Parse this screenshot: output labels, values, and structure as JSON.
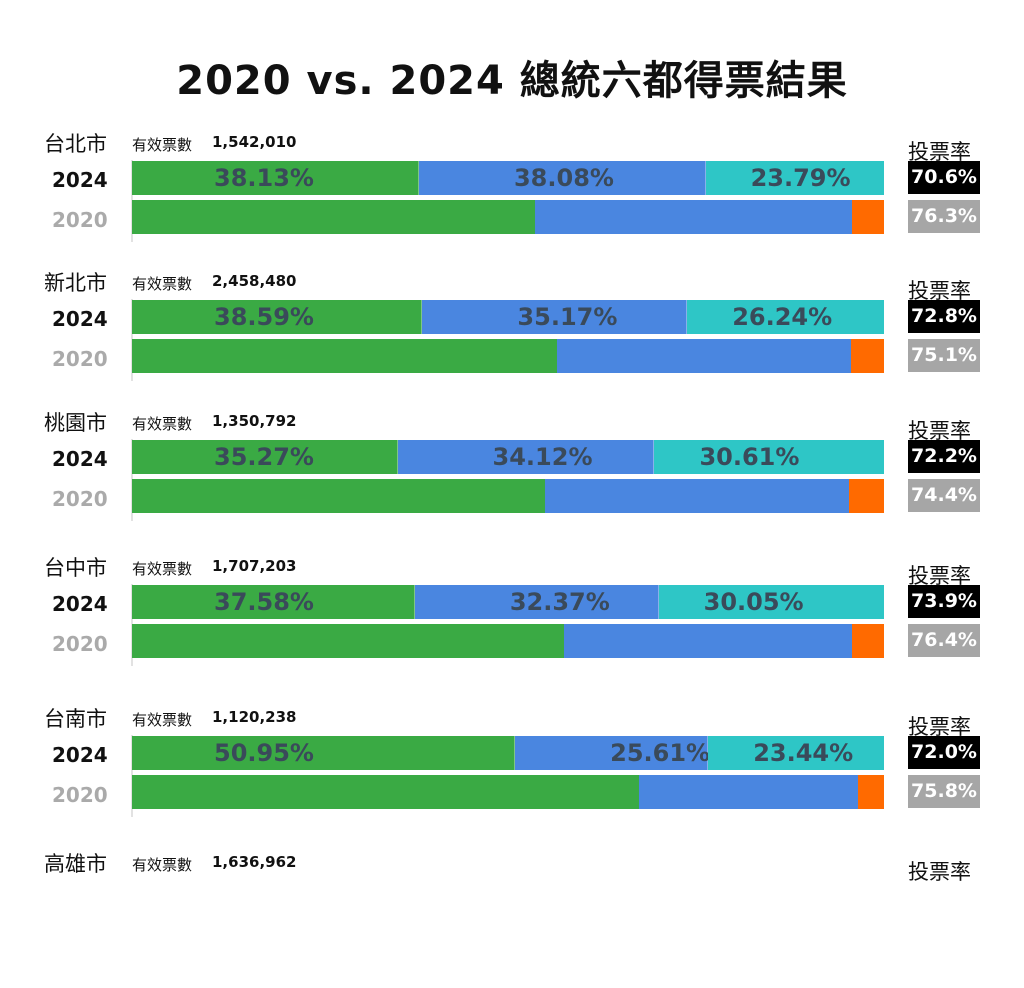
{
  "title": "2020 vs. 2024 總統六都得票結果",
  "labels": {
    "valid_votes": "有效票數",
    "turnout": "投票率",
    "year_2024": "2024",
    "year_2020": "2020"
  },
  "colors": {
    "dpp": "#3aaa44",
    "kmt": "#4a86e0",
    "tpp": "#2ec6c6",
    "pfp": "#ff6a00"
  },
  "chart_data": {
    "type": "bar",
    "title": "2020 vs. 2024 總統六都得票結果",
    "stacked": true,
    "orientation": "horizontal",
    "cities": [
      {
        "name": "台北市",
        "valid_votes": "1,542,010",
        "v2024": [
          38.13,
          38.08,
          23.79
        ],
        "labels2024": [
          "38.13%",
          "38.08%",
          "23.79%"
        ],
        "v2020": [
          53.65,
          42.1,
          4.25
        ],
        "turnout2024": "70.6%",
        "turnout2020": "76.3%"
      },
      {
        "name": "新北市",
        "valid_votes": "2,458,480",
        "v2024": [
          38.59,
          35.17,
          26.24
        ],
        "labels2024": [
          "38.59%",
          "35.17%",
          "26.24%"
        ],
        "v2020": [
          56.52,
          39.08,
          4.4
        ],
        "turnout2024": "72.8%",
        "turnout2020": "75.1%"
      },
      {
        "name": "桃園市",
        "valid_votes": "1,350,792",
        "v2024": [
          35.27,
          34.12,
          30.61
        ],
        "labels2024": [
          "35.27%",
          "34.12%",
          "30.61%"
        ],
        "v2020": [
          54.98,
          40.36,
          4.66
        ],
        "turnout2024": "72.2%",
        "turnout2020": "74.4%"
      },
      {
        "name": "台中市",
        "valid_votes": "1,707,203",
        "v2024": [
          37.58,
          32.37,
          30.05
        ],
        "labels2024": [
          "37.58%",
          "32.37%",
          "30.05%"
        ],
        "v2020": [
          57.46,
          38.28,
          4.26
        ],
        "turnout2024": "73.9%",
        "turnout2020": "76.4%"
      },
      {
        "name": "台南市",
        "valid_votes": "1,120,238",
        "v2024": [
          50.95,
          25.61,
          23.44
        ],
        "labels2024": [
          "50.95%",
          "25.61%",
          "23.44%"
        ],
        "v2020": [
          67.38,
          29.2,
          3.42
        ],
        "turnout2024": "72.0%",
        "turnout2020": "75.8%"
      },
      {
        "name": "高雄市",
        "valid_votes": "1,636,962"
      }
    ]
  }
}
